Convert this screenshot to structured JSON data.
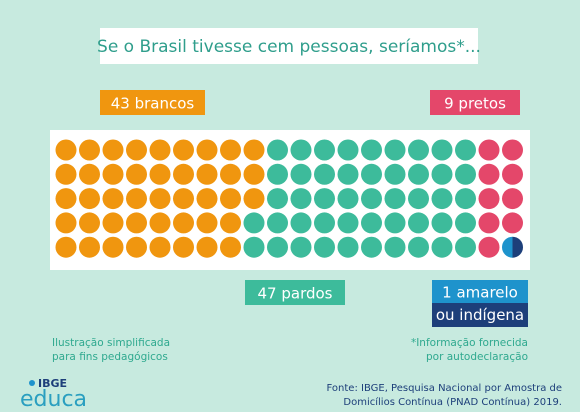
{
  "chart_data": {
    "type": "waffle",
    "title": "Se o Brasil tivesse cem pessoas, seríamos*...",
    "series": [
      {
        "name": "brancos",
        "color": "#f0960f",
        "value": 43
      },
      {
        "name": "pardos",
        "color": "#3dbb9b",
        "value": 47
      },
      {
        "name": "pretos",
        "color": "#e4476a",
        "value": 9
      },
      {
        "name": "amarelo",
        "name_line2": "ou indígena",
        "color": "#1e93cc",
        "color2": "#1d3f7a",
        "value": 1
      }
    ],
    "notes": {
      "left": [
        "Ilustração simplificada",
        "para fins pedagógicos"
      ],
      "right": [
        "*Informação fornecida",
        "por autodeclaração"
      ]
    },
    "source": [
      "Fonte: IBGE, Pesquisa Nacional por Amostra de",
      "Domicílios Contínua (PNAD Contínua) 2019."
    ],
    "logo": {
      "top": "IBGE",
      "bottom": "educa"
    }
  }
}
